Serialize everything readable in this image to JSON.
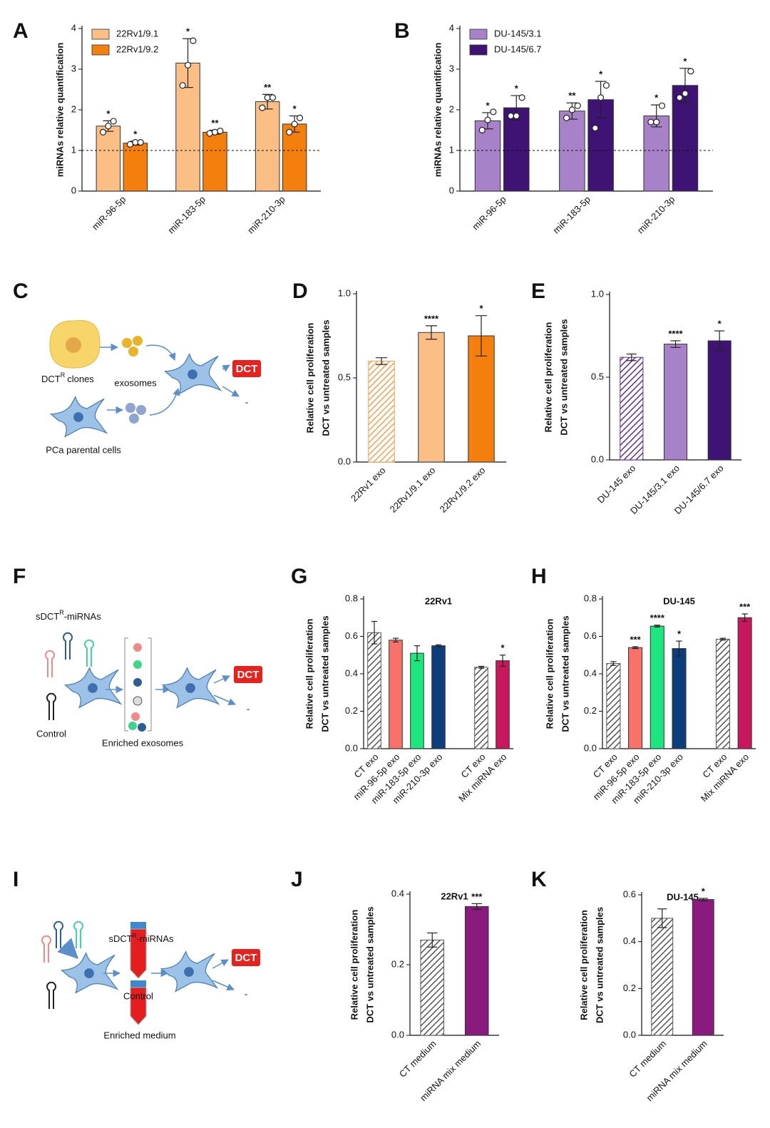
{
  "chart_data": [
    {
      "type": "bar",
      "panel": "A",
      "ylabel": "miRNAs relative quantification",
      "categories": [
        "miR-96-5p",
        "miR-183-5p",
        "miR-210-3p"
      ],
      "series": [
        {
          "name": "22Rv1/9.1",
          "color": "#fbbf85",
          "values": [
            1.6,
            3.15,
            2.2
          ],
          "errors": [
            0.13,
            0.6,
            0.18
          ],
          "points": [
            [
              1.45,
              1.6,
              1.72
            ],
            [
              2.6,
              3.1,
              3.7
            ],
            [
              2.05,
              2.3,
              2.3
            ]
          ],
          "stars": [
            "*",
            "*",
            "**"
          ]
        },
        {
          "name": "22Rv1/9.2",
          "color": "#f57f0c",
          "values": [
            1.18,
            1.45,
            1.65
          ],
          "errors": [
            0.05,
            0.05,
            0.2
          ],
          "points": [
            [
              1.15,
              1.2,
              1.2
            ],
            [
              1.42,
              1.45,
              1.48
            ],
            [
              1.45,
              1.65,
              1.8
            ]
          ],
          "stars": [
            "*",
            "**",
            "*"
          ]
        }
      ],
      "ylim": [
        0,
        4
      ],
      "yticks": [
        0,
        1,
        2,
        3,
        4
      ],
      "hline": 1
    },
    {
      "type": "bar",
      "panel": "B",
      "ylabel": "miRNAs relative quantification",
      "categories": [
        "miR-96-5p",
        "miR-183-5p",
        "miR-210-3p"
      ],
      "series": [
        {
          "name": "DU-145/3.1",
          "color": "#a882c9",
          "values": [
            1.73,
            1.97,
            1.85
          ],
          "errors": [
            0.2,
            0.2,
            0.27
          ],
          "points": [
            [
              1.5,
              1.75,
              1.95
            ],
            [
              1.8,
              2.0,
              2.1
            ],
            [
              1.7,
              1.7,
              2.1
            ]
          ],
          "stars": [
            "*",
            "**",
            "*"
          ]
        },
        {
          "name": "DU-145/6.7",
          "color": "#3f1373",
          "values": [
            2.05,
            2.25,
            2.6
          ],
          "errors": [
            0.3,
            0.45,
            0.42
          ],
          "points": [
            [
              1.85,
              1.85,
              2.3
            ],
            [
              1.55,
              2.3,
              2.6
            ],
            [
              2.3,
              2.4,
              2.95
            ]
          ],
          "stars": [
            "*",
            "*",
            "*"
          ]
        }
      ],
      "ylim": [
        0,
        4
      ],
      "yticks": [
        0,
        1,
        2,
        3,
        4
      ],
      "hline": 1
    },
    {
      "type": "bar",
      "panel": "D",
      "ylabel": [
        "Relative cell proliferation",
        "DCT vs untreated samples"
      ],
      "categories": [
        "22Rv1 exo",
        "22Rv1/9.1 exo",
        "22Rv1/9.2 exo"
      ],
      "values": [
        0.6,
        0.77,
        0.75
      ],
      "errors": [
        0.02,
        0.04,
        0.12
      ],
      "stars": [
        null,
        "****",
        "*"
      ],
      "colors": [
        "#f6a04d",
        "#fbbf85",
        "#f57f0c"
      ],
      "hatched": [
        true,
        false,
        false
      ],
      "ylim": [
        0,
        1
      ],
      "yticks": [
        {
          "value": 0,
          "label": "0.0"
        },
        {
          "value": 0.5,
          "label": "0.5"
        },
        {
          "value": 1,
          "label": "1.0"
        }
      ]
    },
    {
      "type": "bar",
      "panel": "E",
      "ylabel": [
        "Relative cell proliferation",
        "DCT vs untreated samples"
      ],
      "categories": [
        "DU-145 exo",
        "DU-145/3.1 exo",
        "DU-145/6.7 exo"
      ],
      "values": [
        0.62,
        0.7,
        0.72
      ],
      "errors": [
        0.02,
        0.02,
        0.06
      ],
      "stars": [
        null,
        "****",
        "*"
      ],
      "colors": [
        "#5b2f8f",
        "#a882c9",
        "#3f1373"
      ],
      "hatched": [
        true,
        false,
        false
      ],
      "ylim": [
        0,
        1
      ],
      "yticks": [
        {
          "value": 0,
          "label": "0.0"
        },
        {
          "value": 0.5,
          "label": "0.5"
        },
        {
          "value": 1,
          "label": "1.0"
        }
      ]
    },
    {
      "type": "bar",
      "panel": "G",
      "title": "22Rv1",
      "ylabel": [
        "Relative cell proliferation",
        "DCT vs untreated samples"
      ],
      "categories": [
        "CT exo",
        "miR-96-5p exo",
        "miR-183-5p exo",
        "miR-210-3p exo",
        null,
        "CT exo",
        "Mix miRNA exo"
      ],
      "values": [
        0.62,
        0.58,
        0.51,
        0.55,
        null,
        0.435,
        0.47
      ],
      "errors": [
        0.06,
        0.01,
        0.04,
        0.005,
        null,
        0.005,
        0.03
      ],
      "stars": [
        null,
        null,
        null,
        null,
        null,
        null,
        "*"
      ],
      "colors": [
        "#555555",
        "#f8726a",
        "#1ce67d",
        "#0b3e7a",
        null,
        "#555555",
        "#c8175c"
      ],
      "hatched": [
        true,
        false,
        false,
        false,
        null,
        true,
        false
      ],
      "ylim": [
        0,
        0.8
      ],
      "yticks": [
        {
          "value": 0,
          "label": "0.0"
        },
        {
          "value": 0.2,
          "label": "0.2"
        },
        {
          "value": 0.4,
          "label": "0.4"
        },
        {
          "value": 0.6,
          "label": "0.6"
        },
        {
          "value": 0.8,
          "label": "0.8"
        }
      ]
    },
    {
      "type": "bar",
      "panel": "H",
      "title": "DU-145",
      "ylabel": [
        "Relative cell proliferation",
        "DCT vs untreated samples"
      ],
      "categories": [
        "CT exo",
        "miR-96-5p exo",
        "miR-183-5p exo",
        "miR-210-3p exo",
        null,
        "CT exo",
        "Mix miRNA exo"
      ],
      "values": [
        0.455,
        0.54,
        0.655,
        0.535,
        null,
        0.585,
        0.7
      ],
      "errors": [
        0.01,
        0.005,
        0.005,
        0.04,
        null,
        0.005,
        0.02
      ],
      "stars": [
        null,
        "***",
        "****",
        "*",
        null,
        null,
        "***"
      ],
      "colors": [
        "#555555",
        "#f8726a",
        "#1ce67d",
        "#0b3e7a",
        null,
        "#555555",
        "#c8175c"
      ],
      "hatched": [
        true,
        false,
        false,
        false,
        null,
        true,
        false
      ],
      "ylim": [
        0,
        0.8
      ],
      "yticks": [
        {
          "value": 0,
          "label": "0.0"
        },
        {
          "value": 0.2,
          "label": "0.2"
        },
        {
          "value": 0.4,
          "label": "0.4"
        },
        {
          "value": 0.6,
          "label": "0.6"
        },
        {
          "value": 0.8,
          "label": "0.8"
        }
      ]
    },
    {
      "type": "bar",
      "panel": "J",
      "title": "22Rv1",
      "ylabel": [
        "Relative cell proliferation",
        "DCT vs untreated samples"
      ],
      "categories": [
        "CT medium",
        "miRNA mix medium"
      ],
      "values": [
        0.27,
        0.365
      ],
      "errors": [
        0.02,
        0.008
      ],
      "stars": [
        null,
        "***"
      ],
      "colors": [
        "#555555",
        "#8b1a7f"
      ],
      "hatched": [
        true,
        false
      ],
      "ylim": [
        0,
        0.4
      ],
      "yticks": [
        {
          "value": 0,
          "label": "0.0"
        },
        {
          "value": 0.2,
          "label": "0.2"
        },
        {
          "value": 0.4,
          "label": "0.4"
        }
      ]
    },
    {
      "type": "bar",
      "panel": "K",
      "title": "DU-145",
      "ylabel": [
        "Relative cell proliferation",
        "DCT vs untreated samples"
      ],
      "categories": [
        "CT medium",
        "miRNA mix medium"
      ],
      "values": [
        0.5,
        0.58
      ],
      "errors": [
        0.04,
        0.005
      ],
      "stars": [
        null,
        "*"
      ],
      "colors": [
        "#555555",
        "#8b1a7f"
      ],
      "hatched": [
        true,
        false
      ],
      "ylim": [
        0,
        0.6
      ],
      "yticks": [
        {
          "value": 0,
          "label": "0.0"
        },
        {
          "value": 0.2,
          "label": "0.2"
        },
        {
          "value": 0.4,
          "label": "0.4"
        },
        {
          "value": 0.6,
          "label": "0.6"
        }
      ]
    }
  ],
  "diagrams": [
    {
      "panel": "C",
      "source": [
        "DCT",
        "R",
        "clones"
      ],
      "vesicles": "exosomes",
      "parental": "PCa parental cells",
      "outcome": [
        "DCT",
        "-"
      ]
    },
    {
      "panel": "F",
      "source": [
        "sDCT",
        "R",
        "-miRNAs"
      ],
      "control": "Control",
      "vesicles": "Enriched exosomes",
      "outcome": [
        "DCT",
        "-"
      ]
    },
    {
      "panel": "I",
      "source": [
        "sDCT",
        "R",
        "-miRNAs"
      ],
      "control": "Control",
      "vesicles": "Enriched medium",
      "outcome": [
        "DCT",
        "-"
      ]
    }
  ]
}
